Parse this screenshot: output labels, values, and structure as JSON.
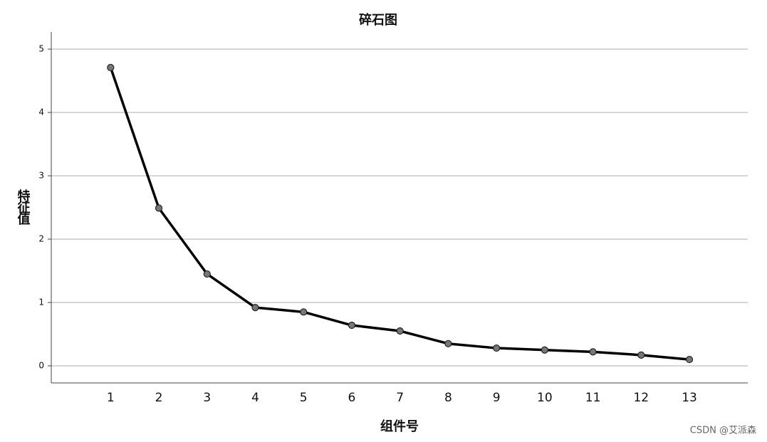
{
  "chart_data": {
    "type": "line",
    "title": "碎石图",
    "x_label": "组件号",
    "y_label": "特征值",
    "x": [
      1,
      2,
      3,
      4,
      5,
      6,
      7,
      8,
      9,
      10,
      11,
      12,
      13
    ],
    "series": [
      {
        "name": "特征值",
        "color": "#000000",
        "marker_color": "#777777",
        "values": [
          4.71,
          2.49,
          1.45,
          0.92,
          0.85,
          0.64,
          0.55,
          0.35,
          0.28,
          0.25,
          0.22,
          0.17,
          0.1
        ]
      }
    ],
    "xlim": [
      -0.23,
      14.21
    ],
    "xticks": [
      1,
      2,
      3,
      4,
      5,
      6,
      7,
      8,
      9,
      10,
      11,
      12,
      13
    ],
    "ylim": [
      -0.27,
      5.27
    ],
    "yticks": [
      0,
      1,
      2,
      3,
      4,
      5
    ],
    "grid": true
  },
  "watermark": "CSDN @艾派森"
}
